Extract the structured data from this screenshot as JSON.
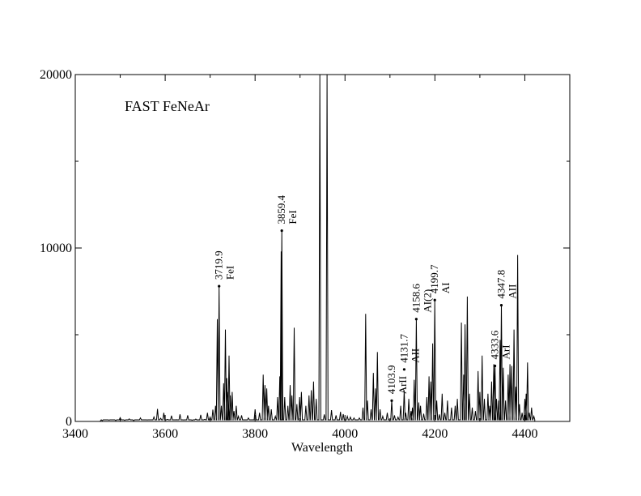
{
  "chart_data": {
    "type": "line",
    "title": "FAST FeNeAr",
    "xlabel": "Wavelength",
    "ylabel": "",
    "xlim": [
      3400,
      4500
    ],
    "ylim": [
      0,
      20000
    ],
    "x_major_ticks": [
      3400,
      3600,
      3800,
      4000,
      4200,
      4400
    ],
    "x_tick_labels": [
      "3400",
      "3600",
      "3800",
      "4000",
      "4200",
      "4400"
    ],
    "y_major_ticks": [
      0,
      10000,
      20000
    ],
    "y_tick_labels": [
      "0",
      "10000",
      "20000"
    ],
    "y_minor_ticks": [
      5000,
      15000
    ],
    "grid": false,
    "series": [
      {
        "lines": [
          [
            3460,
            40
          ],
          [
            3475,
            80
          ],
          [
            3490,
            50
          ],
          [
            3500,
            220
          ],
          [
            3510,
            60
          ],
          [
            3520,
            150
          ],
          [
            3530,
            40
          ],
          [
            3545,
            200
          ],
          [
            3560,
            90
          ],
          [
            3575,
            260
          ],
          [
            3583,
            720
          ],
          [
            3590,
            180
          ],
          [
            3597,
            500
          ],
          [
            3605,
            120
          ],
          [
            3614,
            330
          ],
          [
            3625,
            100
          ],
          [
            3633,
            410
          ],
          [
            3641,
            90
          ],
          [
            3650,
            350
          ],
          [
            3660,
            70
          ],
          [
            3668,
            140
          ],
          [
            3679,
            380
          ],
          [
            3688,
            120
          ],
          [
            3694,
            500
          ],
          [
            3700,
            250
          ],
          [
            3706,
            680
          ],
          [
            3712,
            900
          ],
          [
            3716,
            5900
          ],
          [
            3719.9,
            7800
          ],
          [
            3725,
            900
          ],
          [
            3730,
            2200
          ],
          [
            3734,
            5300
          ],
          [
            3737,
            2500
          ],
          [
            3740,
            1700
          ],
          [
            3742,
            3800
          ],
          [
            3745,
            1500
          ],
          [
            3749,
            1700
          ],
          [
            3753,
            600
          ],
          [
            3758,
            900
          ],
          [
            3763,
            300
          ],
          [
            3770,
            350
          ],
          [
            3785,
            200
          ],
          [
            3800,
            700
          ],
          [
            3810,
            500
          ],
          [
            3818,
            2700
          ],
          [
            3822,
            2100
          ],
          [
            3826,
            1900
          ],
          [
            3830,
            900
          ],
          [
            3836,
            700
          ],
          [
            3845,
            300
          ],
          [
            3850,
            1400
          ],
          [
            3855,
            2600
          ],
          [
            3858,
            9800
          ],
          [
            3859.4,
            11000
          ],
          [
            3866,
            1400
          ],
          [
            3873,
            900
          ],
          [
            3878,
            2100
          ],
          [
            3882,
            1500
          ],
          [
            3887,
            5400
          ],
          [
            3893,
            1000
          ],
          [
            3899,
            1400
          ],
          [
            3903,
            1700
          ],
          [
            3913,
            900
          ],
          [
            3920,
            1500
          ],
          [
            3925,
            1800
          ],
          [
            3930,
            2300
          ],
          [
            3936,
            1300
          ],
          [
            3944,
            20000
          ],
          [
            3954,
            400
          ],
          [
            3960,
            20000
          ],
          [
            3970,
            650
          ],
          [
            3980,
            350
          ],
          [
            3990,
            550
          ],
          [
            3996,
            420
          ],
          [
            4005,
            300
          ],
          [
            4012,
            250
          ],
          [
            4020,
            200
          ],
          [
            4032,
            200
          ],
          [
            4040,
            800
          ],
          [
            4046,
            6200
          ],
          [
            4050,
            1200
          ],
          [
            4058,
            700
          ],
          [
            4063,
            2800
          ],
          [
            4068,
            1900
          ],
          [
            4072,
            4000
          ],
          [
            4078,
            700
          ],
          [
            4084,
            300
          ],
          [
            4094,
            500
          ],
          [
            4103.9,
            1200
          ],
          [
            4110,
            350
          ],
          [
            4118,
            250
          ],
          [
            4124,
            900
          ],
          [
            4131.7,
            1800
          ],
          [
            4135,
            500
          ],
          [
            4142,
            1300
          ],
          [
            4147,
            600
          ],
          [
            4150,
            800
          ],
          [
            4154,
            2400
          ],
          [
            4158.6,
            5900
          ],
          [
            4164,
            1100
          ],
          [
            4168,
            900
          ],
          [
            4175,
            450
          ],
          [
            4182,
            1400
          ],
          [
            4187,
            2600
          ],
          [
            4191,
            2300
          ],
          [
            4195,
            4500
          ],
          [
            4199.7,
            7000
          ],
          [
            4204,
            1200
          ],
          [
            4210,
            400
          ],
          [
            4216,
            1600
          ],
          [
            4222,
            500
          ],
          [
            4228,
            1200
          ],
          [
            4237,
            800
          ],
          [
            4245,
            900
          ],
          [
            4250,
            1300
          ],
          [
            4259,
            5700
          ],
          [
            4264,
            2700
          ],
          [
            4267,
            5600
          ],
          [
            4272,
            7200
          ],
          [
            4277,
            1600
          ],
          [
            4283,
            800
          ],
          [
            4290,
            600
          ],
          [
            4296,
            2900
          ],
          [
            4300,
            1700
          ],
          [
            4305,
            3800
          ],
          [
            4310,
            1300
          ],
          [
            4318,
            1600
          ],
          [
            4322,
            900
          ],
          [
            4326,
            2300
          ],
          [
            4331,
            3300
          ],
          [
            4333.6,
            3200
          ],
          [
            4337,
            1300
          ],
          [
            4342,
            1200
          ],
          [
            4345,
            4700
          ],
          [
            4347.8,
            6700
          ],
          [
            4352,
            3100
          ],
          [
            4357,
            1200
          ],
          [
            4363,
            2700
          ],
          [
            4367,
            3300
          ],
          [
            4371,
            3200
          ],
          [
            4376,
            5300
          ],
          [
            4380,
            2000
          ],
          [
            4384,
            9600
          ],
          [
            4388,
            1000
          ],
          [
            4394,
            500
          ],
          [
            4400,
            1300
          ],
          [
            4403,
            1600
          ],
          [
            4406,
            3400
          ],
          [
            4410,
            500
          ],
          [
            4415,
            800
          ],
          [
            4420,
            300
          ]
        ]
      }
    ],
    "annotations": [
      {
        "wavelength_label": "3719.9",
        "ion": "FeI",
        "x": 3719.9,
        "y": 7800
      },
      {
        "wavelength_label": "3859.4",
        "ion": "FeI",
        "x": 3859.4,
        "y": 11000
      },
      {
        "wavelength_label": "4103.9",
        "ion": "ArII",
        "x": 4103.9,
        "y": 1200
      },
      {
        "wavelength_label": "4131.7",
        "ion": "AII",
        "x": 4131.7,
        "y": 3000
      },
      {
        "wavelength_label": "4158.6",
        "ion": "AI(2)",
        "x": 4158.6,
        "y": 5900
      },
      {
        "wavelength_label": "4199.7",
        "ion": "AI",
        "x": 4199.7,
        "y": 7000
      },
      {
        "wavelength_label": "4333.6",
        "ion": "ArI",
        "x": 4333.6,
        "y": 3200
      },
      {
        "wavelength_label": "4347.8",
        "ion": "AII",
        "x": 4347.8,
        "y": 6700
      }
    ]
  }
}
